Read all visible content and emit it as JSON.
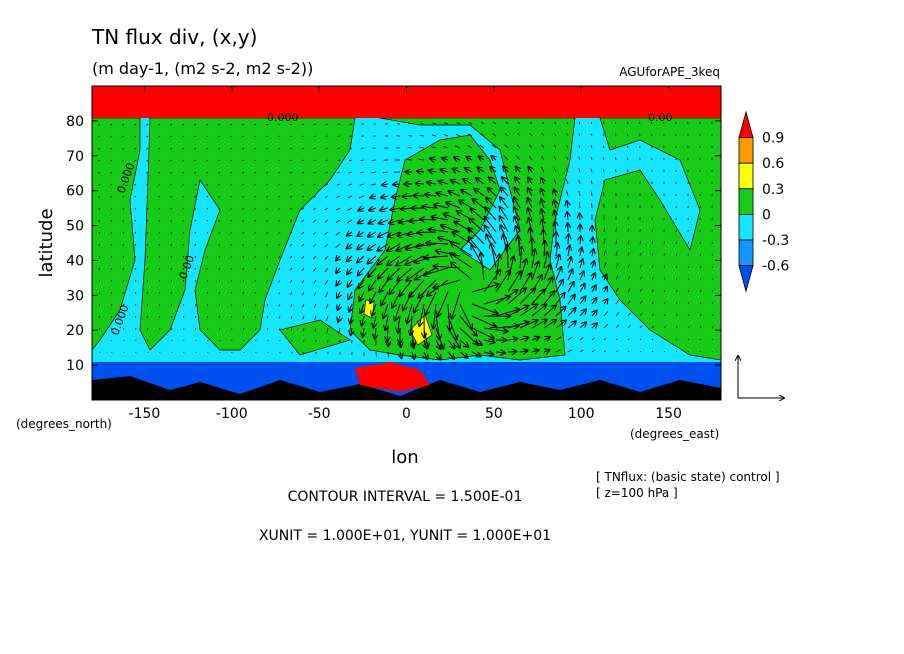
{
  "chart_data": {
    "type": "heatmap",
    "title": "TN flux div, (x,y)",
    "subtitle": "(m day-1, (m2 s-2, m2 s-2))",
    "dataset": "AGUforAPE_3keq",
    "xlabel": "lon",
    "ylabel": "latitude",
    "x_unit_label": "(degrees_east)",
    "y_unit_label": "(degrees_north)",
    "xlim": [
      -180,
      180
    ],
    "ylim": [
      0,
      90
    ],
    "x_ticks": [
      -150,
      -100,
      -50,
      0,
      50,
      100,
      150
    ],
    "y_ticks": [
      10,
      20,
      30,
      40,
      50,
      60,
      70,
      80
    ],
    "colorbar": {
      "levels": [
        -0.6,
        -0.3,
        0,
        0.3,
        0.6,
        0.9
      ],
      "colors": [
        "#0050f0",
        "#1496ff",
        "#14e6ff",
        "#16cc16",
        "#ffff00",
        "#ff9900",
        "#ff0000"
      ],
      "labels": [
        "0.9",
        "0.6",
        "0.3",
        "0",
        "-0.3",
        "-0.6"
      ]
    },
    "contour_labels": [
      "0.000",
      "0.00",
      "0.000",
      "0.00",
      "0.000"
    ],
    "has_vector_overlay": true,
    "bands": [
      {
        "lat_range": [
          80,
          90
        ],
        "value": 1.0
      },
      {
        "lat_range": [
          0,
          8
        ],
        "value": -0.7
      }
    ]
  },
  "footer": {
    "contour_interval": "CONTOUR INTERVAL = 1.500E-01",
    "units": "XUNIT = 1.000E+01, YUNIT = 1.000E+01",
    "note1": "[ TNflux: (basic state) control ]",
    "note2": "[ z=100 hPa ]"
  }
}
